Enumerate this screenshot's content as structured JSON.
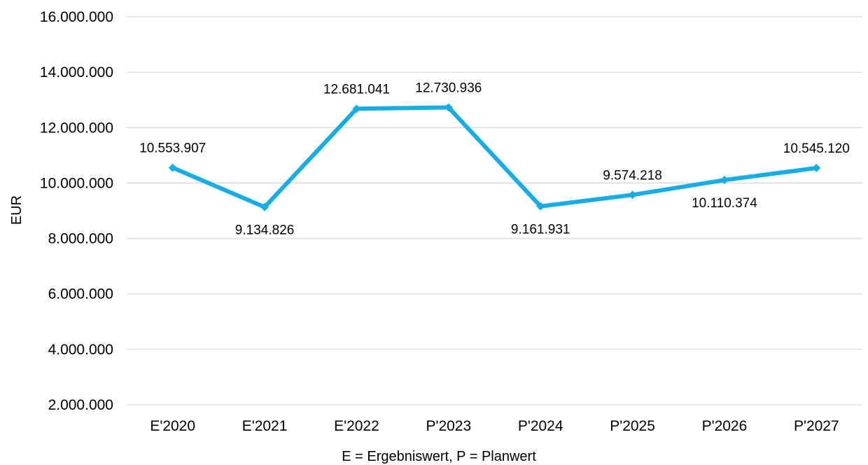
{
  "chart_data": {
    "type": "line",
    "categories": [
      "E'2020",
      "E'2021",
      "E'2022",
      "P'2023",
      "P'2024",
      "P'2025",
      "P'2026",
      "P'2027"
    ],
    "series": [
      {
        "values": [
          10553907,
          9134826,
          12681041,
          12730936,
          9161931,
          9574218,
          10110374,
          10545120
        ],
        "value_labels": [
          "10.553.907",
          "9.134.826",
          "12.681.041",
          "12.730.936",
          "9.161.931",
          "9.574.218",
          "10.110.374",
          "10.545.120"
        ],
        "label_positions": [
          "above",
          "below",
          "above",
          "above",
          "below",
          "above",
          "below",
          "above"
        ],
        "color": "#16ade6"
      }
    ],
    "ylim": [
      2000000,
      16000000
    ],
    "y_ticks": [
      2000000,
      4000000,
      6000000,
      8000000,
      10000000,
      12000000,
      14000000,
      16000000
    ],
    "y_tick_labels": [
      "2.000.000",
      "4.000.000",
      "6.000.000",
      "8.000.000",
      "10.000.000",
      "12.000.000",
      "14.000.000",
      "16.000.000"
    ],
    "ylabel": "EUR",
    "xlabel": "E = Ergebniswert, P = Planwert",
    "grid": true,
    "legend": "none",
    "gridline_color": "#d9d9d9"
  }
}
